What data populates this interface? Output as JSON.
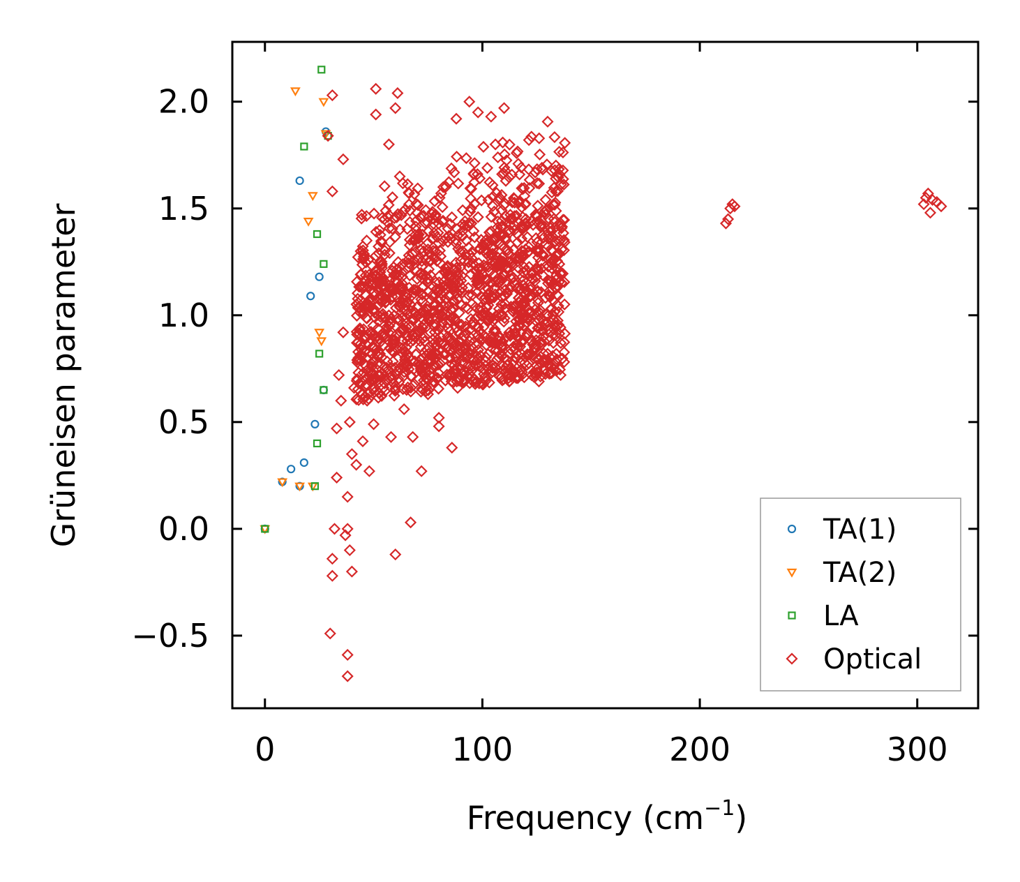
{
  "chart_data": {
    "type": "scatter",
    "xlabel": "Frequency (cm",
    "xlabel_sup": "−1",
    "xlabel_close": ")",
    "ylabel": "Grüneisen parameter",
    "xlim": [
      -15,
      328
    ],
    "ylim": [
      -0.84,
      2.28
    ],
    "xticks": [
      0,
      100,
      200,
      300
    ],
    "xtick_labels": [
      "0",
      "100",
      "200",
      "300"
    ],
    "yticks": [
      -0.5,
      0.0,
      0.5,
      1.0,
      1.5,
      2.0
    ],
    "ytick_labels": [
      "−0.5",
      "0.0",
      "0.5",
      "1.0",
      "1.5",
      "2.0"
    ],
    "grid": false,
    "legend_position": "lower-right",
    "series": [
      {
        "name": "TA(1)",
        "marker": "circle",
        "color": "#1f77b4",
        "points": [
          [
            0,
            0.0
          ],
          [
            8,
            0.22
          ],
          [
            12,
            0.28
          ],
          [
            16,
            0.2
          ],
          [
            16,
            1.63
          ],
          [
            18,
            0.31
          ],
          [
            21,
            1.09
          ],
          [
            23,
            0.49
          ],
          [
            25,
            1.18
          ],
          [
            27,
            0.65
          ],
          [
            28,
            1.86
          ]
        ]
      },
      {
        "name": "TA(2)",
        "marker": "triangle-down",
        "color": "#ff7f0e",
        "points": [
          [
            0,
            0.0
          ],
          [
            8,
            0.22
          ],
          [
            14,
            2.05
          ],
          [
            16,
            0.2
          ],
          [
            20,
            1.44
          ],
          [
            22,
            1.56
          ],
          [
            22,
            0.2
          ],
          [
            25,
            0.92
          ],
          [
            26,
            0.88
          ],
          [
            27,
            2.0
          ],
          [
            28,
            1.85
          ]
        ]
      },
      {
        "name": "LA",
        "marker": "square",
        "color": "#2ca02c",
        "points": [
          [
            0,
            0.0
          ],
          [
            18,
            1.79
          ],
          [
            23,
            0.2
          ],
          [
            24,
            0.4
          ],
          [
            24,
            1.38
          ],
          [
            25,
            0.82
          ],
          [
            26,
            2.15
          ],
          [
            27,
            1.24
          ],
          [
            27,
            0.65
          ],
          [
            29,
            1.84
          ]
        ]
      },
      {
        "name": "Optical",
        "marker": "diamond",
        "color": "#d62728",
        "points": [
          [
            29,
            1.84
          ],
          [
            31,
            2.03
          ],
          [
            31,
            1.58
          ],
          [
            30,
            -0.49
          ],
          [
            31,
            -0.14
          ],
          [
            31,
            -0.22
          ],
          [
            32,
            0.0
          ],
          [
            33,
            0.24
          ],
          [
            33,
            0.47
          ],
          [
            34,
            0.72
          ],
          [
            35,
            0.6
          ],
          [
            36,
            0.92
          ],
          [
            36,
            1.73
          ],
          [
            37,
            -0.03
          ],
          [
            38,
            0.15
          ],
          [
            38,
            0.0
          ],
          [
            38,
            -0.59
          ],
          [
            38,
            -0.69
          ],
          [
            39,
            -0.1
          ],
          [
            40,
            -0.2
          ],
          [
            39,
            0.5
          ],
          [
            40,
            0.35
          ],
          [
            41,
            0.66
          ],
          [
            42,
            0.3
          ],
          [
            43,
            0.8
          ],
          [
            44,
            1.3
          ],
          [
            45,
            0.41
          ],
          [
            46,
            0.9
          ],
          [
            47,
            0.6
          ],
          [
            48,
            0.27
          ],
          [
            50,
            0.49
          ],
          [
            51,
            2.06
          ],
          [
            51,
            1.94
          ],
          [
            52,
            0.72
          ],
          [
            53,
            1.25
          ],
          [
            55,
            1.45
          ],
          [
            57,
            1.8
          ],
          [
            58,
            0.43
          ],
          [
            60,
            -0.12
          ],
          [
            60,
            1.97
          ],
          [
            61,
            2.04
          ],
          [
            62,
            1.65
          ],
          [
            63,
            1.15
          ],
          [
            64,
            0.56
          ],
          [
            65,
            0.85
          ],
          [
            67,
            0.03
          ],
          [
            68,
            0.43
          ],
          [
            70,
            1.0
          ],
          [
            72,
            0.27
          ],
          [
            73,
            1.3
          ],
          [
            75,
            0.63
          ],
          [
            78,
            1.05
          ],
          [
            80,
            0.48
          ],
          [
            80,
            0.52
          ],
          [
            82,
            1.6
          ],
          [
            84,
            0.9
          ],
          [
            86,
            0.38
          ],
          [
            88,
            1.92
          ],
          [
            89,
            1.2
          ],
          [
            91,
            1.3
          ],
          [
            92,
            1.44
          ],
          [
            94,
            2.0
          ],
          [
            96,
            1.66
          ],
          [
            98,
            1.95
          ],
          [
            100,
            1.0
          ],
          [
            102,
            1.23
          ],
          [
            104,
            1.93
          ],
          [
            106,
            1.8
          ],
          [
            108,
            1.55
          ],
          [
            110,
            1.97
          ],
          [
            112,
            1.25
          ],
          [
            114,
            1.45
          ],
          [
            116,
            1.38
          ],
          [
            118,
            1.28
          ],
          [
            120,
            1.1
          ],
          [
            122,
            0.98
          ],
          [
            124,
            0.85
          ],
          [
            126,
            0.69
          ],
          [
            128,
            0.78
          ],
          [
            130,
            0.82
          ],
          [
            132,
            0.76
          ],
          [
            134,
            0.74
          ],
          [
            136,
            0.72
          ],
          [
            212,
            1.43
          ],
          [
            213,
            1.45
          ],
          [
            214,
            1.5
          ],
          [
            215,
            1.52
          ],
          [
            216,
            1.51
          ],
          [
            303,
            1.52
          ],
          [
            304,
            1.55
          ],
          [
            305,
            1.57
          ],
          [
            306,
            1.48
          ],
          [
            307,
            1.54
          ],
          [
            309,
            1.53
          ],
          [
            311,
            1.51
          ]
        ]
      }
    ],
    "clusters": [
      {
        "name": "Optical",
        "x": [
          42,
          138
        ],
        "y_start": [
          0.6,
          1.55
        ],
        "y_end": [
          0.72,
          1.95
        ],
        "density": 1500,
        "spread": 0.55
      }
    ]
  }
}
